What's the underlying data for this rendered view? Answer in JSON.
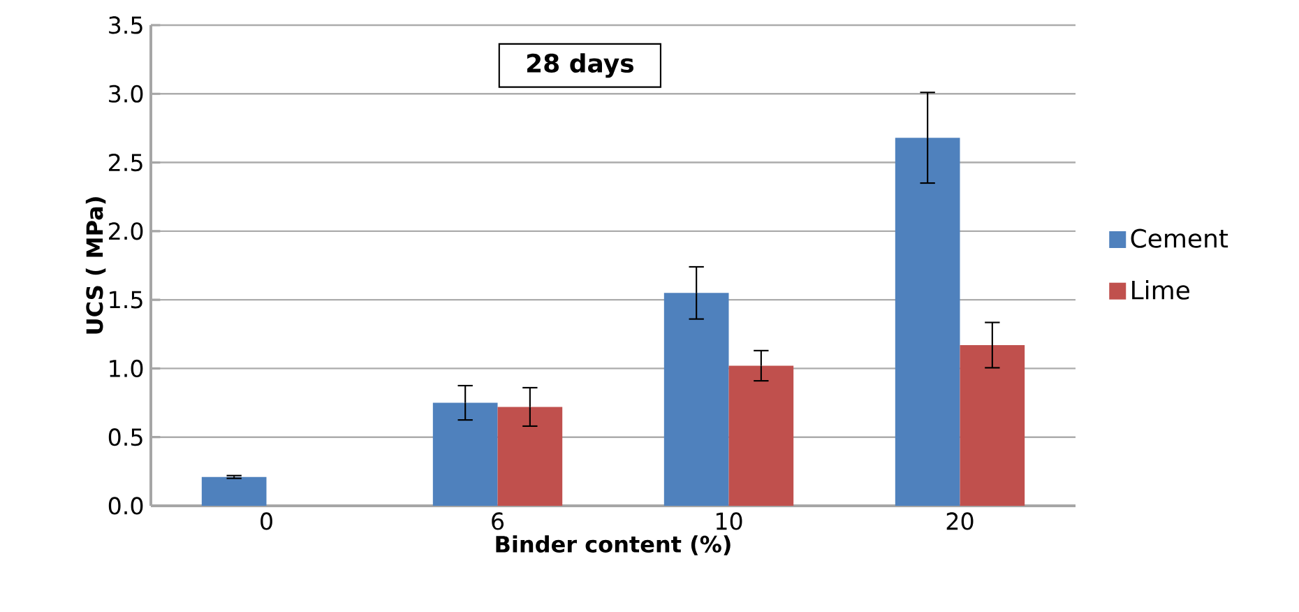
{
  "chart_data": {
    "type": "bar",
    "title": "28 days",
    "xlabel": "Binder content (%)",
    "ylabel": "UCS ( MPa)",
    "categories": [
      "0",
      "6",
      "10",
      "20"
    ],
    "series": [
      {
        "name": "Cement",
        "color": "#4f81bd",
        "values": [
          0.21,
          0.75,
          1.55,
          2.68
        ],
        "errors": [
          0.01,
          0.125,
          0.19,
          0.33
        ]
      },
      {
        "name": "Lime",
        "color": "#c0504d",
        "values": [
          null,
          0.72,
          1.02,
          1.17
        ],
        "errors": [
          null,
          0.14,
          0.11,
          0.165
        ]
      }
    ],
    "ylim": [
      0,
      3.5
    ],
    "yticks": [
      {
        "value": 0,
        "label": "0.0"
      },
      0.5,
      {
        "value": 1,
        "label": "1.0"
      },
      1.5,
      {
        "value": 2,
        "label": "2.0"
      },
      2.5,
      {
        "value": 3,
        "label": "3.0"
      },
      3.5
    ],
    "grid": "y",
    "legend": "right"
  }
}
